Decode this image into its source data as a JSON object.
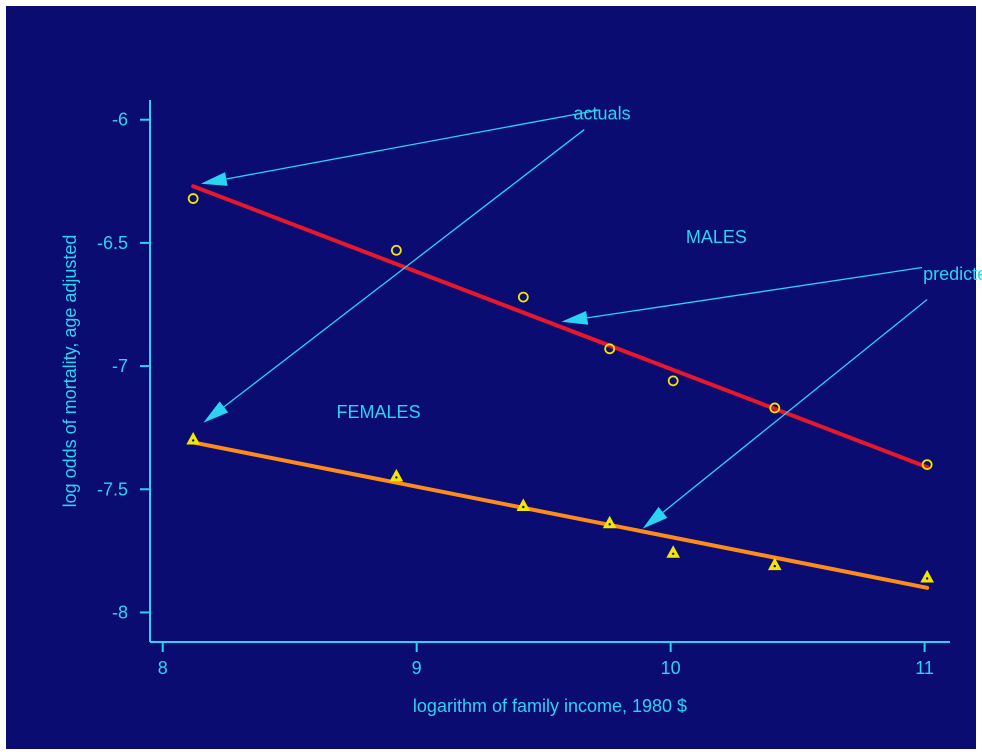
{
  "chart_data": {
    "type": "line",
    "xlabel": "logarithm of family income, 1980 $",
    "ylabel": "log odds of mortality, age adjusted",
    "xlim": [
      7.95,
      11.1
    ],
    "ylim": [
      -8.12,
      -5.92
    ],
    "x_ticks": [
      8,
      9,
      10,
      11
    ],
    "y_ticks": [
      -6,
      -6.5,
      -7,
      -7.5,
      -8
    ],
    "grid": false,
    "series": [
      {
        "name": "MALES",
        "kind": "actuals",
        "marker": "circle",
        "color": "#f2e600",
        "points": [
          [
            8.12,
            -6.32
          ],
          [
            8.92,
            -6.53
          ],
          [
            9.42,
            -6.72
          ],
          [
            9.76,
            -6.93
          ],
          [
            10.01,
            -7.06
          ],
          [
            10.41,
            -7.17
          ],
          [
            11.01,
            -7.4
          ]
        ]
      },
      {
        "name": "MALES",
        "kind": "predicted",
        "color": "#e8182a",
        "line": [
          [
            8.12,
            -6.27
          ],
          [
            11.01,
            -7.41
          ]
        ]
      },
      {
        "name": "FEMALES",
        "kind": "actuals",
        "marker": "triangle",
        "color": "#f2e600",
        "points": [
          [
            8.12,
            -7.3
          ],
          [
            8.92,
            -7.45
          ],
          [
            9.42,
            -7.57
          ],
          [
            9.76,
            -7.64
          ],
          [
            10.01,
            -7.76
          ],
          [
            10.41,
            -7.81
          ],
          [
            11.01,
            -7.86
          ]
        ]
      },
      {
        "name": "FEMALES",
        "kind": "predicted",
        "color": "#ff8c1a",
        "line": [
          [
            8.12,
            -7.31
          ],
          [
            11.01,
            -7.9
          ]
        ]
      }
    ],
    "annotations": [
      {
        "id": "actuals",
        "text": "actuals",
        "x": 9.73,
        "y": -6.0
      },
      {
        "id": "predicted",
        "text": "predicted",
        "x": 11.14,
        "y": -6.65
      },
      {
        "id": "males",
        "text": "MALES",
        "x": 10.18,
        "y": -6.5
      },
      {
        "id": "females",
        "text": "FEMALES",
        "x": 8.85,
        "y": -7.21
      }
    ],
    "arrows": [
      {
        "label": "actuals",
        "from": [
          9.72,
          -5.96
        ],
        "to": [
          8.15,
          -6.26
        ]
      },
      {
        "label": "actuals",
        "from": [
          9.66,
          -6.04
        ],
        "to": [
          8.16,
          -7.23
        ]
      },
      {
        "label": "predicted",
        "from": [
          10.99,
          -6.6
        ],
        "to": [
          9.57,
          -6.82
        ]
      },
      {
        "label": "predicted",
        "from": [
          11.01,
          -6.73
        ],
        "to": [
          9.89,
          -7.66
        ]
      }
    ],
    "colors": {
      "background": "#0a0c72",
      "axis": "#2ad4f0",
      "text": "#2ad4f0",
      "arrow": "#2ad4f0",
      "markers": "#f2e600"
    }
  }
}
